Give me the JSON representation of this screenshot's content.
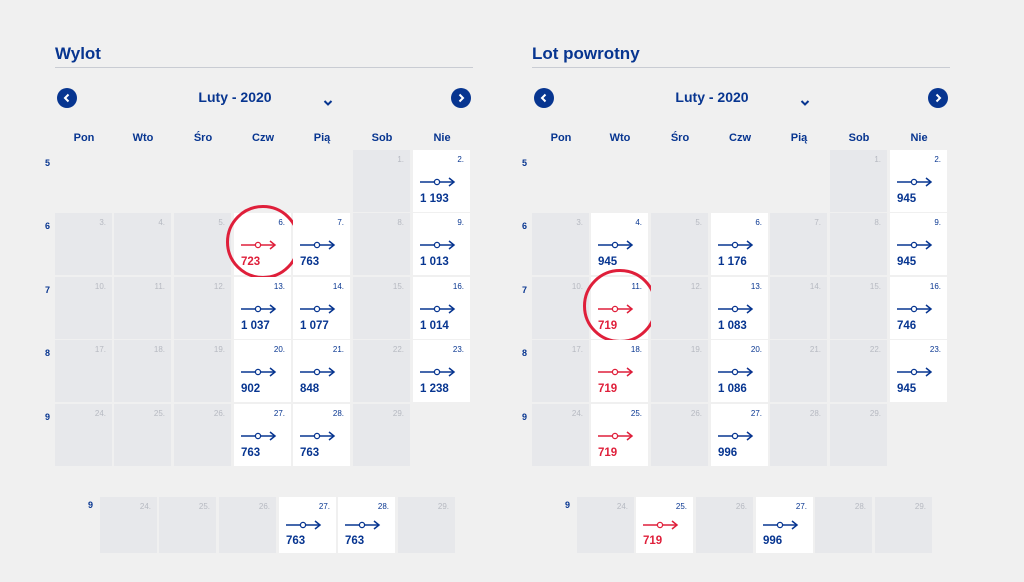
{
  "colors": {
    "accent": "#073590",
    "cheapest": "#df1f3a",
    "available_bg": "#ffffff",
    "unavailable_bg": "#e7e8eb"
  },
  "departure": {
    "title": "Wylot",
    "month_label": "Luty - 2020",
    "weekdays": [
      "Pon",
      "Wto",
      "Śro",
      "Czw",
      "Pią",
      "Sob",
      "Nie"
    ],
    "weeks": [
      {
        "number": "5",
        "days": [
          {
            "day": "",
            "price": "",
            "state": "empty"
          },
          {
            "day": "",
            "price": "",
            "state": "empty"
          },
          {
            "day": "",
            "price": "",
            "state": "empty"
          },
          {
            "day": "",
            "price": "",
            "state": "empty"
          },
          {
            "day": "",
            "price": "",
            "state": "empty"
          },
          {
            "day": "1.",
            "price": "",
            "state": "unavailable"
          },
          {
            "day": "2.",
            "price": "1 193",
            "state": "available"
          }
        ]
      },
      {
        "number": "6",
        "days": [
          {
            "day": "3.",
            "price": "",
            "state": "unavailable"
          },
          {
            "day": "4.",
            "price": "",
            "state": "unavailable"
          },
          {
            "day": "5.",
            "price": "",
            "state": "unavailable"
          },
          {
            "day": "6.",
            "price": "723",
            "state": "cheapest"
          },
          {
            "day": "7.",
            "price": "763",
            "state": "available"
          },
          {
            "day": "8.",
            "price": "",
            "state": "unavailable"
          },
          {
            "day": "9.",
            "price": "1 013",
            "state": "available"
          }
        ]
      },
      {
        "number": "7",
        "days": [
          {
            "day": "10.",
            "price": "",
            "state": "unavailable"
          },
          {
            "day": "11.",
            "price": "",
            "state": "unavailable"
          },
          {
            "day": "12.",
            "price": "",
            "state": "unavailable"
          },
          {
            "day": "13.",
            "price": "1 037",
            "state": "available"
          },
          {
            "day": "14.",
            "price": "1 077",
            "state": "available"
          },
          {
            "day": "15.",
            "price": "",
            "state": "unavailable"
          },
          {
            "day": "16.",
            "price": "1 014",
            "state": "available"
          }
        ]
      },
      {
        "number": "8",
        "days": [
          {
            "day": "17.",
            "price": "",
            "state": "unavailable"
          },
          {
            "day": "18.",
            "price": "",
            "state": "unavailable"
          },
          {
            "day": "19.",
            "price": "",
            "state": "unavailable"
          },
          {
            "day": "20.",
            "price": "902",
            "state": "available"
          },
          {
            "day": "21.",
            "price": "848",
            "state": "available"
          },
          {
            "day": "22.",
            "price": "",
            "state": "unavailable"
          },
          {
            "day": "23.",
            "price": "1 238",
            "state": "available"
          }
        ]
      },
      {
        "number": "9",
        "days": [
          {
            "day": "24.",
            "price": "",
            "state": "unavailable"
          },
          {
            "day": "25.",
            "price": "",
            "state": "unavailable"
          },
          {
            "day": "26.",
            "price": "",
            "state": "unavailable"
          },
          {
            "day": "27.",
            "price": "763",
            "state": "available"
          },
          {
            "day": "28.",
            "price": "763",
            "state": "available"
          },
          {
            "day": "29.",
            "price": "",
            "state": "unavailable"
          },
          {
            "day": "",
            "price": "",
            "state": "empty"
          }
        ]
      }
    ],
    "extra_week": {
      "number": "9",
      "days": [
        {
          "day": "24.",
          "price": "",
          "state": "unavailable"
        },
        {
          "day": "25.",
          "price": "",
          "state": "unavailable"
        },
        {
          "day": "26.",
          "price": "",
          "state": "unavailable"
        },
        {
          "day": "27.",
          "price": "763",
          "state": "available"
        },
        {
          "day": "28.",
          "price": "763",
          "state": "available"
        },
        {
          "day": "29.",
          "price": "",
          "state": "unavailable"
        }
      ]
    }
  },
  "return": {
    "title": "Lot powrotny",
    "month_label": "Luty - 2020",
    "weekdays": [
      "Pon",
      "Wto",
      "Śro",
      "Czw",
      "Pią",
      "Sob",
      "Nie"
    ],
    "weeks": [
      {
        "number": "5",
        "days": [
          {
            "day": "",
            "price": "",
            "state": "empty"
          },
          {
            "day": "",
            "price": "",
            "state": "empty"
          },
          {
            "day": "",
            "price": "",
            "state": "empty"
          },
          {
            "day": "",
            "price": "",
            "state": "empty"
          },
          {
            "day": "",
            "price": "",
            "state": "empty"
          },
          {
            "day": "1.",
            "price": "",
            "state": "unavailable"
          },
          {
            "day": "2.",
            "price": "945",
            "state": "available"
          }
        ]
      },
      {
        "number": "6",
        "days": [
          {
            "day": "3.",
            "price": "",
            "state": "unavailable"
          },
          {
            "day": "4.",
            "price": "945",
            "state": "available"
          },
          {
            "day": "5.",
            "price": "",
            "state": "unavailable"
          },
          {
            "day": "6.",
            "price": "1 176",
            "state": "available"
          },
          {
            "day": "7.",
            "price": "",
            "state": "unavailable"
          },
          {
            "day": "8.",
            "price": "",
            "state": "unavailable"
          },
          {
            "day": "9.",
            "price": "945",
            "state": "available"
          }
        ]
      },
      {
        "number": "7",
        "days": [
          {
            "day": "10.",
            "price": "",
            "state": "unavailable"
          },
          {
            "day": "11.",
            "price": "719",
            "state": "cheapest"
          },
          {
            "day": "12.",
            "price": "",
            "state": "unavailable"
          },
          {
            "day": "13.",
            "price": "1 083",
            "state": "available"
          },
          {
            "day": "14.",
            "price": "",
            "state": "unavailable"
          },
          {
            "day": "15.",
            "price": "",
            "state": "unavailable"
          },
          {
            "day": "16.",
            "price": "746",
            "state": "available"
          }
        ]
      },
      {
        "number": "8",
        "days": [
          {
            "day": "17.",
            "price": "",
            "state": "unavailable"
          },
          {
            "day": "18.",
            "price": "719",
            "state": "cheapest"
          },
          {
            "day": "19.",
            "price": "",
            "state": "unavailable"
          },
          {
            "day": "20.",
            "price": "1 086",
            "state": "available"
          },
          {
            "day": "21.",
            "price": "",
            "state": "unavailable"
          },
          {
            "day": "22.",
            "price": "",
            "state": "unavailable"
          },
          {
            "day": "23.",
            "price": "945",
            "state": "available"
          }
        ]
      },
      {
        "number": "9",
        "days": [
          {
            "day": "24.",
            "price": "",
            "state": "unavailable"
          },
          {
            "day": "25.",
            "price": "719",
            "state": "cheapest"
          },
          {
            "day": "26.",
            "price": "",
            "state": "unavailable"
          },
          {
            "day": "27.",
            "price": "996",
            "state": "available"
          },
          {
            "day": "28.",
            "price": "",
            "state": "unavailable"
          },
          {
            "day": "29.",
            "price": "",
            "state": "unavailable"
          },
          {
            "day": "",
            "price": "",
            "state": "empty"
          }
        ]
      }
    ],
    "extra_week": {
      "number": "9",
      "days": [
        {
          "day": "24.",
          "price": "",
          "state": "unavailable"
        },
        {
          "day": "25.",
          "price": "719",
          "state": "cheapest"
        },
        {
          "day": "26.",
          "price": "",
          "state": "unavailable"
        },
        {
          "day": "27.",
          "price": "996",
          "state": "available"
        },
        {
          "day": "28.",
          "price": "",
          "state": "unavailable"
        },
        {
          "day": "29.",
          "price": "",
          "state": "unavailable"
        }
      ]
    }
  },
  "icons": {
    "prev": "chevron-left-icon",
    "next": "chevron-right-icon",
    "month_dropdown": "chevron-down-icon",
    "flight": "flight-arrow-icon"
  }
}
